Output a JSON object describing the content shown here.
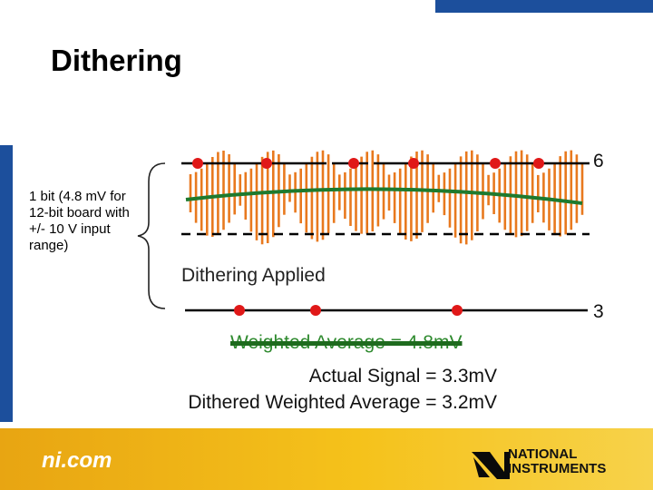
{
  "slide": {
    "title": "Dithering",
    "note": "1 bit (4.8 mV for 12-bit board with +/- 10 V input range)",
    "dithering_label": "Dithering Applied",
    "level_high": "6",
    "level_low": "3",
    "weighted_average": "Weighted Average = 4.8mV",
    "actual_signal": "Actual Signal = 3.3mV",
    "dithered_weighted_average": "Dithered Weighted Average = 3.2mV"
  },
  "footer": {
    "site": "ni.com",
    "company_line1": "NATIONAL",
    "company_line2": "INSTRUMENTS"
  },
  "colors": {
    "accent_blue": "#1c4f9c",
    "footer_gold": "#f5c21b",
    "dither_orange": "#e8791e",
    "average_green": "#1e7a2e",
    "sample_red": "#e01818"
  },
  "icons": [
    "ni-eagle-logo-icon"
  ]
}
